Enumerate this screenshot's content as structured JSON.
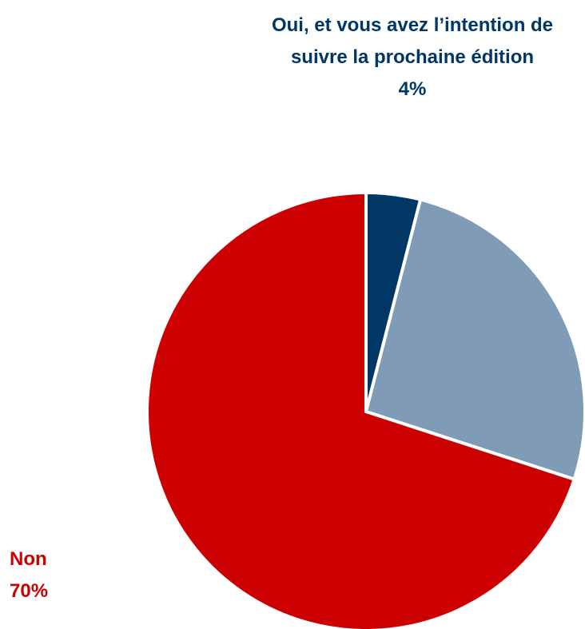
{
  "chart_data": {
    "type": "pie",
    "categories": [
      "Oui, et vous avez l’intention de suivre la prochaine édition",
      null,
      "Non"
    ],
    "values": [
      4,
      26,
      70
    ],
    "value_labels": [
      "4%",
      null,
      "70%"
    ],
    "colors": [
      "#003764",
      "#7f9bb5",
      "#cc0000"
    ]
  }
}
